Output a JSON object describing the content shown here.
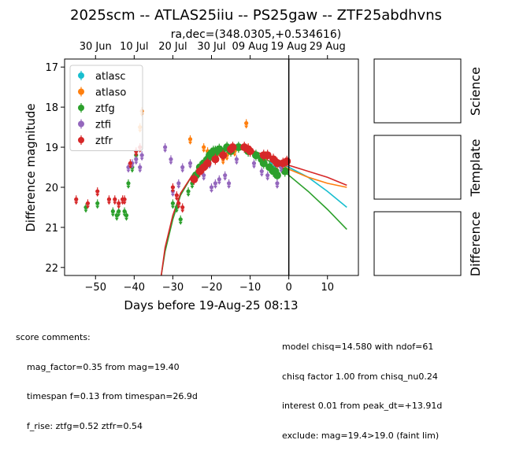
{
  "title": "2025scm -- ATLAS25iiu -- PS25gaw -- ZTF25abdhvns",
  "subtitle": "ra,dec=(348.0305,+0.534616)",
  "chart_data": {
    "type": "scatter",
    "xlabel": "Days before 19-Aug-25 08:13",
    "ylabel": "Difference magnitude",
    "xlim": [
      -58,
      18
    ],
    "ylim": [
      22.2,
      16.8
    ],
    "xticks": [
      -50,
      -40,
      -30,
      -20,
      -10,
      0,
      10
    ],
    "yticks": [
      17,
      18,
      19,
      20,
      21,
      22
    ],
    "top_ticks": [
      {
        "x": -50,
        "label": "30 Jun"
      },
      {
        "x": -40,
        "label": "10 Jul"
      },
      {
        "x": -30,
        "label": "20 Jul"
      },
      {
        "x": -20,
        "label": "30 Jul"
      },
      {
        "x": -10,
        "label": "09 Aug"
      },
      {
        "x": 0,
        "label": "19 Aug"
      },
      {
        "x": 10,
        "label": "29 Aug"
      }
    ],
    "vline_x": 0,
    "legend_position": "top-left",
    "series": [
      {
        "name": "atlasc",
        "color": "#17becf",
        "kind": "marker",
        "points": [
          [
            -4.5,
            19.4
          ],
          [
            -3.8,
            19.5
          ]
        ]
      },
      {
        "name": "atlaso",
        "color": "#ff7f0e",
        "kind": "marker",
        "points": [
          [
            -38.5,
            18.5
          ],
          [
            -38.0,
            18.1
          ],
          [
            -25.5,
            18.8
          ],
          [
            -22.0,
            19.0
          ],
          [
            -21.0,
            19.1
          ],
          [
            -20.0,
            19.2
          ],
          [
            -18.0,
            19.1
          ],
          [
            -17.0,
            19.3
          ],
          [
            -16.0,
            19.2
          ],
          [
            -14.0,
            19.1
          ],
          [
            -11.0,
            18.4
          ],
          [
            -10.5,
            19.0
          ],
          [
            -6.0,
            19.2
          ],
          [
            -4.0,
            19.3
          ]
        ]
      },
      {
        "name": "ztfg",
        "color": "#2ca02c",
        "kind": "marker",
        "points": [
          [
            -52.5,
            20.5
          ],
          [
            -49.5,
            20.4
          ],
          [
            -45.5,
            20.6
          ],
          [
            -44.5,
            20.7
          ],
          [
            -44.0,
            20.6
          ],
          [
            -42.5,
            20.6
          ],
          [
            -42.0,
            20.7
          ],
          [
            -41.5,
            19.9
          ],
          [
            -40.5,
            19.5
          ],
          [
            -39.5,
            19.2
          ],
          [
            -30.0,
            20.4
          ],
          [
            -29.0,
            20.5
          ],
          [
            -28.0,
            20.8
          ],
          [
            -26.0,
            20.1
          ],
          [
            -25.0,
            19.9
          ],
          [
            -24.0,
            19.7
          ],
          [
            -23.0,
            19.5
          ],
          [
            -22.0,
            19.4
          ],
          [
            -21.0,
            19.3
          ],
          [
            -20.5,
            19.2
          ],
          [
            -20.0,
            19.15
          ],
          [
            -19.5,
            19.1
          ],
          [
            -19.0,
            19.1
          ],
          [
            -18.5,
            19.1
          ],
          [
            -18.0,
            19.05
          ],
          [
            -17.5,
            19.1
          ],
          [
            -16.0,
            19.0
          ],
          [
            -15.0,
            19.1
          ],
          [
            -13.0,
            19.0
          ],
          [
            -10.5,
            19.1
          ],
          [
            -8.5,
            19.2
          ],
          [
            -7.0,
            19.3
          ],
          [
            -6.5,
            19.4
          ],
          [
            -5.0,
            19.5
          ],
          [
            -4.0,
            19.6
          ],
          [
            -3.5,
            19.6
          ],
          [
            -3.0,
            19.7
          ],
          [
            -1.0,
            19.6
          ]
        ]
      },
      {
        "name": "ztfi",
        "color": "#9467bd",
        "kind": "marker",
        "points": [
          [
            -41.5,
            19.5
          ],
          [
            -40.5,
            19.4
          ],
          [
            -39.5,
            19.3
          ],
          [
            -38.5,
            19.5
          ],
          [
            -38.0,
            19.2
          ],
          [
            -32.0,
            19.0
          ],
          [
            -30.5,
            19.3
          ],
          [
            -30.0,
            20.1
          ],
          [
            -28.5,
            19.9
          ],
          [
            -27.5,
            19.5
          ],
          [
            -25.5,
            19.4
          ],
          [
            -22.0,
            19.7
          ],
          [
            -20.5,
            19.4
          ],
          [
            -20.0,
            20.0
          ],
          [
            -19.0,
            19.9
          ],
          [
            -18.0,
            19.8
          ],
          [
            -16.5,
            19.7
          ],
          [
            -15.5,
            19.9
          ],
          [
            -13.5,
            19.3
          ],
          [
            -9.0,
            19.4
          ],
          [
            -7.0,
            19.6
          ],
          [
            -5.5,
            19.7
          ],
          [
            -3.0,
            19.9
          ],
          [
            -2.0,
            19.5
          ]
        ]
      },
      {
        "name": "ztfr",
        "color": "#d62728",
        "kind": "marker",
        "points": [
          [
            -55.0,
            20.3
          ],
          [
            -52.0,
            20.4
          ],
          [
            -49.5,
            20.1
          ],
          [
            -46.5,
            20.3
          ],
          [
            -45.0,
            20.3
          ],
          [
            -44.0,
            20.4
          ],
          [
            -43.0,
            20.3
          ],
          [
            -42.5,
            20.3
          ],
          [
            -41.0,
            19.4
          ],
          [
            -39.5,
            19.1
          ],
          [
            -38.5,
            19.0
          ],
          [
            -30.0,
            20.0
          ],
          [
            -29.0,
            20.2
          ],
          [
            -28.5,
            20.4
          ],
          [
            -27.5,
            20.5
          ],
          [
            -24.5,
            19.8
          ],
          [
            -23.0,
            19.6
          ],
          [
            -22.0,
            19.5
          ],
          [
            -21.0,
            19.4
          ],
          [
            -19.0,
            19.3
          ],
          [
            -17.0,
            19.2
          ],
          [
            -15.0,
            19.05
          ],
          [
            -14.5,
            19.0
          ],
          [
            -11.5,
            19.0
          ],
          [
            -10.5,
            19.05
          ],
          [
            -10.0,
            19.1
          ],
          [
            -6.5,
            19.2
          ],
          [
            -5.5,
            19.2
          ],
          [
            -4.0,
            19.3
          ],
          [
            -3.0,
            19.4
          ],
          [
            -1.5,
            19.4
          ],
          [
            -0.5,
            19.35
          ]
        ]
      },
      {
        "name": "",
        "color": "#17becf",
        "kind": "line",
        "points": [
          [
            -4,
            19.3
          ],
          [
            0,
            19.5
          ],
          [
            5,
            19.75
          ],
          [
            10,
            20.1
          ],
          [
            15,
            20.5
          ]
        ]
      },
      {
        "name": "",
        "color": "#ff7f0e",
        "kind": "line",
        "points": [
          [
            -4,
            19.3
          ],
          [
            0,
            19.55
          ],
          [
            5,
            19.75
          ],
          [
            10,
            19.9
          ],
          [
            15,
            20.0
          ]
        ]
      },
      {
        "name": "",
        "color": "#2ca02c",
        "kind": "line",
        "points": [
          [
            -33,
            22.2
          ],
          [
            -32,
            21.6
          ],
          [
            -30,
            20.8
          ],
          [
            -28,
            20.2
          ],
          [
            -25,
            19.7
          ],
          [
            -22,
            19.4
          ],
          [
            -18,
            19.15
          ],
          [
            -15,
            19.05
          ],
          [
            -12,
            19.05
          ],
          [
            -9,
            19.15
          ],
          [
            -6,
            19.3
          ],
          [
            -3,
            19.45
          ],
          [
            0,
            19.7
          ],
          [
            5,
            20.1
          ],
          [
            10,
            20.55
          ],
          [
            15,
            21.05
          ]
        ]
      },
      {
        "name": "",
        "color": "#d62728",
        "kind": "line",
        "points": [
          [
            -33,
            22.2
          ],
          [
            -32,
            21.5
          ],
          [
            -30,
            20.7
          ],
          [
            -28,
            20.15
          ],
          [
            -25,
            19.7
          ],
          [
            -22,
            19.4
          ],
          [
            -18,
            19.2
          ],
          [
            -15,
            19.1
          ],
          [
            -12,
            19.05
          ],
          [
            -9,
            19.1
          ],
          [
            -6,
            19.2
          ],
          [
            -3,
            19.3
          ],
          [
            0,
            19.45
          ],
          [
            5,
            19.6
          ],
          [
            10,
            19.75
          ],
          [
            15,
            19.95
          ]
        ]
      }
    ]
  },
  "panels": [
    "Science",
    "Template",
    "Difference"
  ],
  "comments_left": [
    "score comments:",
    "    mag_factor=0.35 from mag=19.40",
    "    timespan f=0.13 from timespan=26.9d",
    "    f_rise: ztfg=0.52 ztfr=0.54"
  ],
  "comments_right": [
    "model chisq=14.580 with ndof=61",
    "chisq factor 1.00 from chisq_nu0.24",
    "interest 0.01 from peak_dt=+13.91d",
    "exclude: mag=19.4>19.0 (faint lim)"
  ]
}
